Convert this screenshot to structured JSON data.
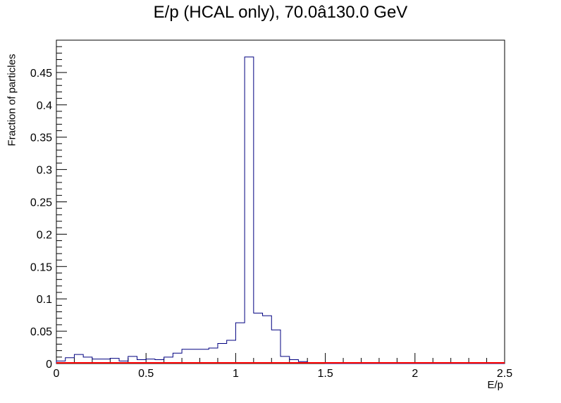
{
  "chart_data": {
    "type": "histogram",
    "title": "E/p (HCAL only), 70.0â130.0 GeV",
    "xlabel": "E/p",
    "ylabel": "Fraction of particles",
    "xlim": [
      0,
      2.5
    ],
    "ylim": [
      0,
      0.5
    ],
    "grid": false,
    "legend": "none",
    "x_ticks": [
      "0",
      "0.5",
      "1",
      "1.5",
      "2",
      "2.5"
    ],
    "y_ticks": [
      "0",
      "0.05",
      "0.1",
      "0.15",
      "0.2",
      "0.25",
      "0.3",
      "0.35",
      "0.4",
      "0.45"
    ],
    "bin_width": 0.05,
    "bins": [
      {
        "x0": 0.0,
        "value": 0.004
      },
      {
        "x0": 0.05,
        "value": 0.009
      },
      {
        "x0": 0.1,
        "value": 0.014
      },
      {
        "x0": 0.15,
        "value": 0.01
      },
      {
        "x0": 0.2,
        "value": 0.007
      },
      {
        "x0": 0.25,
        "value": 0.007
      },
      {
        "x0": 0.3,
        "value": 0.008
      },
      {
        "x0": 0.35,
        "value": 0.004
      },
      {
        "x0": 0.4,
        "value": 0.011
      },
      {
        "x0": 0.45,
        "value": 0.006
      },
      {
        "x0": 0.5,
        "value": 0.007
      },
      {
        "x0": 0.55,
        "value": 0.006
      },
      {
        "x0": 0.6,
        "value": 0.01
      },
      {
        "x0": 0.65,
        "value": 0.016
      },
      {
        "x0": 0.7,
        "value": 0.022
      },
      {
        "x0": 0.75,
        "value": 0.022
      },
      {
        "x0": 0.8,
        "value": 0.022
      },
      {
        "x0": 0.85,
        "value": 0.024
      },
      {
        "x0": 0.9,
        "value": 0.031
      },
      {
        "x0": 0.95,
        "value": 0.036
      },
      {
        "x0": 1.0,
        "value": 0.063
      },
      {
        "x0": 1.05,
        "value": 0.474
      },
      {
        "x0": 1.1,
        "value": 0.078
      },
      {
        "x0": 1.15,
        "value": 0.074
      },
      {
        "x0": 1.2,
        "value": 0.052
      },
      {
        "x0": 1.25,
        "value": 0.011
      },
      {
        "x0": 1.3,
        "value": 0.006
      },
      {
        "x0": 1.35,
        "value": 0.003
      },
      {
        "x0": 1.4,
        "value": 0.001
      },
      {
        "x0": 1.45,
        "value": 0.001
      }
    ],
    "reference_line": {
      "y": 0
    },
    "colors": {
      "histogram": "#000080",
      "reference_line": "#ff0000",
      "axis": "#000000"
    }
  }
}
